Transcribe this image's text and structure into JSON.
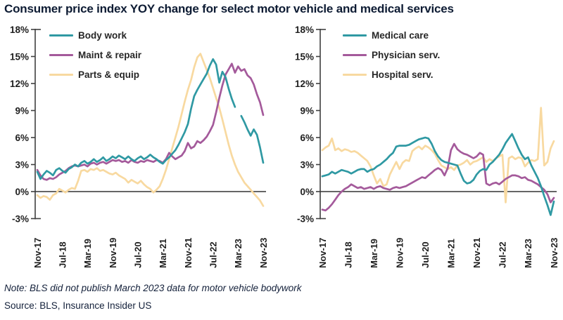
{
  "title": "Consumer price index YOY change for select motor vehicle and medical services",
  "note": "Note: BLS did not publish March 2023 data for motor vehicle bodywork",
  "source": "Source: BLS, Insurance Insider US",
  "colors": {
    "teal": "#2f99a3",
    "purple": "#a45a9b",
    "tan": "#f8d9a0",
    "axis": "#3f3f3f",
    "zero_line": "#333333",
    "tick_text": "#1f1f1f",
    "title_text": "#0d1b33"
  },
  "axes": {
    "ylim": [
      -3,
      18
    ],
    "y_tick_values": [
      18,
      15,
      12,
      9,
      6,
      3,
      0,
      -3
    ],
    "y_tick_labels": [
      "18%",
      "15%",
      "12%",
      "9%",
      "6%",
      "3%",
      "0%",
      "-3%"
    ],
    "x_tick_indices": [
      0,
      8,
      16,
      24,
      32,
      40,
      48,
      56,
      64,
      72
    ],
    "x_tick_labels": [
      "Nov-17",
      "Jul-18",
      "Mar-19",
      "Nov-19",
      "Jul-20",
      "Mar-21",
      "Nov-21",
      "Jul-22",
      "Mar-23",
      "Nov-23"
    ],
    "grid": "off",
    "zero_line": true
  },
  "chart_data": [
    {
      "type": "line",
      "title": "Motor vehicle services",
      "x_start": "Nov-17",
      "x_end": "Nov-23",
      "x_frequency": "monthly",
      "ylim": [
        -3,
        18
      ],
      "legend_position": "top-left-inside",
      "series": [
        {
          "name": "Body work",
          "color": "#2f99a3",
          "values": [
            2.2,
            1.4,
            1.9,
            2.3,
            2.1,
            1.8,
            2.4,
            2.6,
            2.3,
            2.1,
            2.5,
            2.7,
            3.0,
            2.8,
            3.2,
            3.4,
            3.1,
            3.3,
            3.6,
            3.3,
            3.5,
            3.8,
            3.4,
            3.6,
            3.9,
            3.7,
            4.0,
            3.8,
            3.6,
            3.9,
            3.6,
            3.4,
            3.7,
            3.9,
            3.6,
            3.8,
            4.1,
            3.8,
            3.6,
            3.3,
            3.1,
            3.5,
            3.8,
            4.2,
            4.6,
            5.2,
            5.9,
            6.6,
            7.5,
            9.2,
            10.6,
            11.3,
            11.9,
            12.5,
            13.1,
            14.0,
            14.7,
            14.1,
            12.1,
            13.3,
            12.7,
            11.4,
            10.3,
            9.4,
            null,
            8.4,
            7.7,
            6.9,
            6.2,
            6.9,
            6.3,
            4.9,
            3.2
          ]
        },
        {
          "name": "Maint & repair",
          "color": "#a45a9b",
          "values": [
            2.4,
            1.8,
            1.4,
            1.3,
            1.5,
            1.4,
            1.6,
            1.9,
            2.1,
            2.3,
            2.6,
            2.8,
            2.9,
            2.8,
            2.9,
            3.0,
            2.8,
            3.1,
            3.2,
            3.0,
            3.2,
            3.3,
            3.1,
            3.3,
            3.5,
            3.4,
            3.5,
            3.3,
            3.4,
            3.2,
            3.5,
            3.3,
            3.2,
            3.4,
            3.3,
            3.5,
            3.4,
            3.3,
            3.5,
            3.4,
            3.2,
            3.6,
            4.3,
            3.9,
            3.6,
            3.8,
            4.0,
            4.5,
            5.4,
            4.8,
            5.0,
            5.6,
            5.4,
            5.7,
            6.1,
            6.7,
            7.4,
            8.8,
            10.4,
            11.8,
            13.0,
            13.6,
            14.2,
            13.2,
            13.9,
            13.4,
            13.6,
            12.9,
            12.6,
            11.9,
            10.8,
            9.9,
            8.5
          ]
        },
        {
          "name": "Parts & equip",
          "color": "#f8d9a0",
          "values": [
            -0.4,
            -0.7,
            -0.5,
            -0.6,
            -0.9,
            -0.4,
            -0.2,
            0.3,
            0.1,
            -0.1,
            0.2,
            0.4,
            0.3,
            1.2,
            2.3,
            2.4,
            2.2,
            2.5,
            2.4,
            2.6,
            2.3,
            2.4,
            2.2,
            2.0,
            1.9,
            2.1,
            1.8,
            1.6,
            1.4,
            1.0,
            1.3,
            1.1,
            0.9,
            1.2,
            0.8,
            0.5,
            0.3,
            -0.1,
            0.2,
            0.6,
            1.4,
            2.4,
            3.6,
            4.8,
            6.0,
            7.2,
            8.6,
            10.0,
            11.3,
            12.4,
            13.8,
            14.9,
            15.3,
            14.4,
            13.5,
            12.6,
            11.5,
            10.4,
            9.3,
            8.0,
            6.6,
            5.2,
            4.0,
            3.0,
            2.2,
            1.6,
            1.0,
            0.6,
            0.2,
            -0.2,
            -0.6,
            -1.0,
            -1.6
          ]
        }
      ]
    },
    {
      "type": "line",
      "title": "Medical services",
      "x_start": "Nov-17",
      "x_end": "Nov-23",
      "x_frequency": "monthly",
      "ylim": [
        -3,
        18
      ],
      "legend_position": "top-left-inside",
      "series": [
        {
          "name": "Medical care",
          "color": "#2f99a3",
          "values": [
            1.7,
            1.8,
            1.9,
            2.2,
            2.0,
            2.2,
            2.4,
            2.3,
            2.2,
            2.0,
            2.2,
            2.4,
            2.5,
            2.5,
            2.2,
            2.4,
            2.5,
            2.8,
            3.0,
            3.3,
            3.6,
            4.0,
            4.3,
            5.0,
            5.1,
            5.1,
            5.1,
            5.2,
            5.4,
            5.6,
            5.8,
            5.9,
            6.0,
            5.9,
            5.3,
            4.5,
            3.9,
            3.5,
            3.3,
            3.2,
            3.1,
            3.0,
            2.9,
            2.0,
            1.2,
            0.9,
            1.0,
            1.3,
            1.9,
            2.3,
            2.5,
            2.4,
            3.0,
            3.3,
            3.7,
            4.1,
            4.7,
            5.4,
            5.9,
            6.4,
            5.6,
            4.8,
            4.1,
            3.6,
            3.8,
            2.9,
            2.2,
            1.5,
            0.6,
            -0.5,
            -1.5,
            -2.6,
            -1.1
          ]
        },
        {
          "name": "Physician serv.",
          "color": "#a45a9b",
          "values": [
            -2.0,
            -2.1,
            -1.8,
            -1.4,
            -0.9,
            -0.4,
            0.0,
            0.3,
            0.5,
            0.8,
            0.6,
            0.4,
            0.5,
            0.3,
            0.4,
            0.5,
            0.3,
            0.5,
            0.6,
            0.4,
            0.3,
            0.2,
            0.4,
            0.5,
            0.4,
            0.5,
            0.6,
            0.8,
            1.0,
            1.2,
            1.4,
            1.6,
            1.5,
            1.8,
            2.1,
            2.4,
            2.6,
            2.4,
            1.8,
            2.6,
            4.6,
            5.3,
            4.7,
            4.4,
            4.2,
            4.1,
            3.9,
            3.7,
            3.9,
            4.3,
            4.1,
            0.9,
            0.7,
            0.9,
            1.0,
            0.8,
            1.1,
            1.4,
            1.6,
            1.8,
            1.8,
            1.7,
            1.5,
            1.6,
            1.3,
            1.2,
            1.0,
            0.8,
            0.5,
            0.2,
            -0.3,
            -1.2,
            -0.7
          ]
        },
        {
          "name": "Hospital serv.",
          "color": "#f8d9a0",
          "values": [
            4.6,
            4.9,
            5.1,
            5.9,
            4.6,
            4.8,
            4.5,
            4.7,
            4.6,
            4.4,
            4.5,
            4.3,
            4.0,
            3.7,
            3.4,
            2.8,
            1.8,
            0.9,
            1.4,
            0.6,
            0.8,
            1.9,
            2.6,
            3.3,
            2.5,
            3.2,
            3.5,
            3.4,
            4.5,
            4.8,
            5.0,
            4.7,
            5.1,
            4.9,
            4.6,
            4.2,
            3.5,
            2.9,
            2.7,
            2.5,
            2.7,
            2.4,
            2.9,
            3.0,
            3.2,
            3.5,
            3.0,
            3.3,
            3.4,
            3.6,
            3.8,
            3.3,
            3.6,
            3.4,
            3.7,
            3.9,
            4.1,
            -1.2,
            3.7,
            3.9,
            3.6,
            3.8,
            3.7,
            2.8,
            3.2,
            3.5,
            3.4,
            3.6,
            9.3,
            2.9,
            3.3,
            4.8,
            5.6
          ]
        }
      ]
    }
  ]
}
